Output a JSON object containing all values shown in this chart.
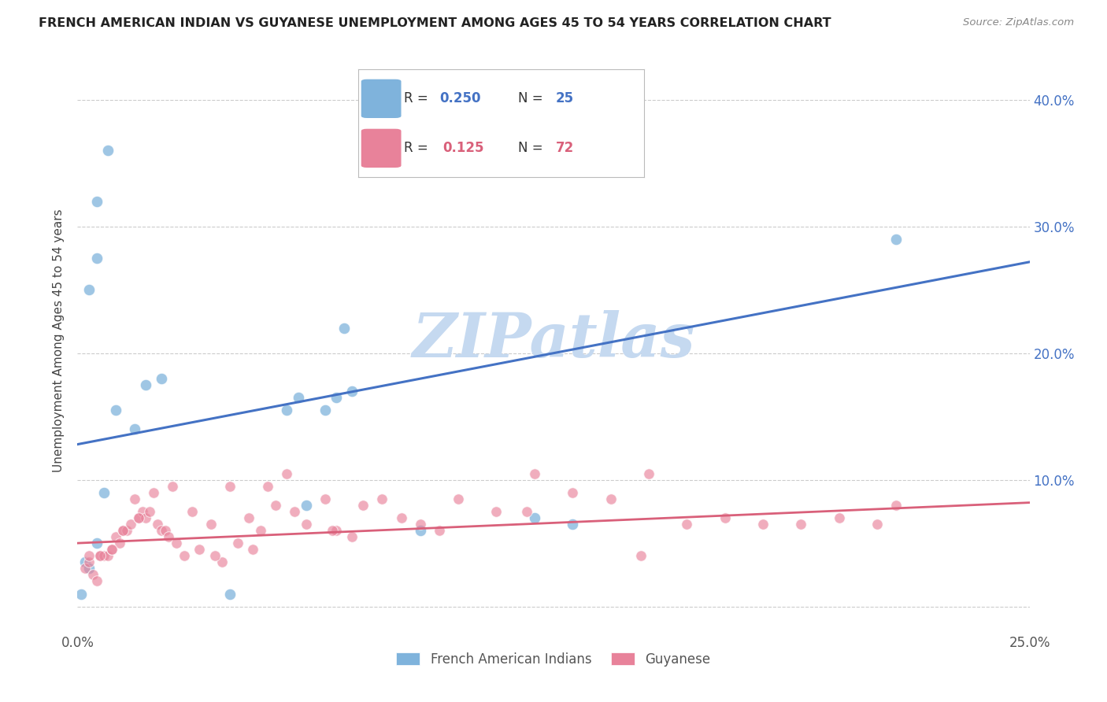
{
  "title": "FRENCH AMERICAN INDIAN VS GUYANESE UNEMPLOYMENT AMONG AGES 45 TO 54 YEARS CORRELATION CHART",
  "source": "Source: ZipAtlas.com",
  "ylabel": "Unemployment Among Ages 45 to 54 years",
  "xlim": [
    0.0,
    0.25
  ],
  "ylim": [
    -0.02,
    0.44
  ],
  "xticks": [
    0.0,
    0.05,
    0.1,
    0.15,
    0.2,
    0.25
  ],
  "xtick_labels": [
    "0.0%",
    "",
    "",
    "",
    "",
    "25.0%"
  ],
  "yticks": [
    0.0,
    0.1,
    0.2,
    0.3,
    0.4
  ],
  "ytick_labels_right": [
    "",
    "10.0%",
    "20.0%",
    "30.0%",
    "40.0%"
  ],
  "blue_color": "#7fb3dc",
  "pink_color": "#e8829a",
  "line_blue": "#4472c4",
  "line_pink": "#d9607a",
  "axis_color": "#4472c4",
  "watermark": "ZIPatlas",
  "watermark_color": "#c5d9f0",
  "blue_scatter_x": [
    0.005,
    0.008,
    0.005,
    0.003,
    0.01,
    0.015,
    0.018,
    0.022,
    0.007,
    0.055,
    0.058,
    0.065,
    0.068,
    0.072,
    0.005,
    0.002,
    0.001,
    0.003,
    0.12,
    0.13,
    0.07,
    0.09,
    0.215,
    0.04,
    0.06
  ],
  "blue_scatter_y": [
    0.275,
    0.36,
    0.32,
    0.25,
    0.155,
    0.14,
    0.175,
    0.18,
    0.09,
    0.155,
    0.165,
    0.155,
    0.165,
    0.17,
    0.05,
    0.035,
    0.01,
    0.03,
    0.07,
    0.065,
    0.22,
    0.06,
    0.29,
    0.01,
    0.08
  ],
  "pink_scatter_x": [
    0.002,
    0.003,
    0.004,
    0.005,
    0.006,
    0.007,
    0.008,
    0.009,
    0.01,
    0.011,
    0.012,
    0.013,
    0.014,
    0.015,
    0.016,
    0.017,
    0.018,
    0.019,
    0.02,
    0.021,
    0.022,
    0.023,
    0.024,
    0.025,
    0.028,
    0.03,
    0.032,
    0.035,
    0.038,
    0.04,
    0.042,
    0.045,
    0.048,
    0.05,
    0.052,
    0.055,
    0.06,
    0.065,
    0.068,
    0.072,
    0.075,
    0.08,
    0.085,
    0.09,
    0.095,
    0.1,
    0.11,
    0.12,
    0.13,
    0.14,
    0.15,
    0.16,
    0.17,
    0.18,
    0.19,
    0.2,
    0.21,
    0.215,
    0.003,
    0.006,
    0.009,
    0.012,
    0.016,
    0.026,
    0.036,
    0.046,
    0.057,
    0.067,
    0.118,
    0.148
  ],
  "pink_scatter_y": [
    0.03,
    0.035,
    0.025,
    0.02,
    0.04,
    0.04,
    0.04,
    0.045,
    0.055,
    0.05,
    0.06,
    0.06,
    0.065,
    0.085,
    0.07,
    0.075,
    0.07,
    0.075,
    0.09,
    0.065,
    0.06,
    0.06,
    0.055,
    0.095,
    0.04,
    0.075,
    0.045,
    0.065,
    0.035,
    0.095,
    0.05,
    0.07,
    0.06,
    0.095,
    0.08,
    0.105,
    0.065,
    0.085,
    0.06,
    0.055,
    0.08,
    0.085,
    0.07,
    0.065,
    0.06,
    0.085,
    0.075,
    0.105,
    0.09,
    0.085,
    0.105,
    0.065,
    0.07,
    0.065,
    0.065,
    0.07,
    0.065,
    0.08,
    0.04,
    0.04,
    0.045,
    0.06,
    0.07,
    0.05,
    0.04,
    0.045,
    0.075,
    0.06,
    0.075,
    0.04
  ],
  "blue_line_x": [
    0.0,
    0.25
  ],
  "blue_line_y": [
    0.128,
    0.272
  ],
  "pink_line_x": [
    0.0,
    0.25
  ],
  "pink_line_y": [
    0.05,
    0.082
  ],
  "figsize": [
    14.06,
    8.92
  ],
  "dpi": 100
}
